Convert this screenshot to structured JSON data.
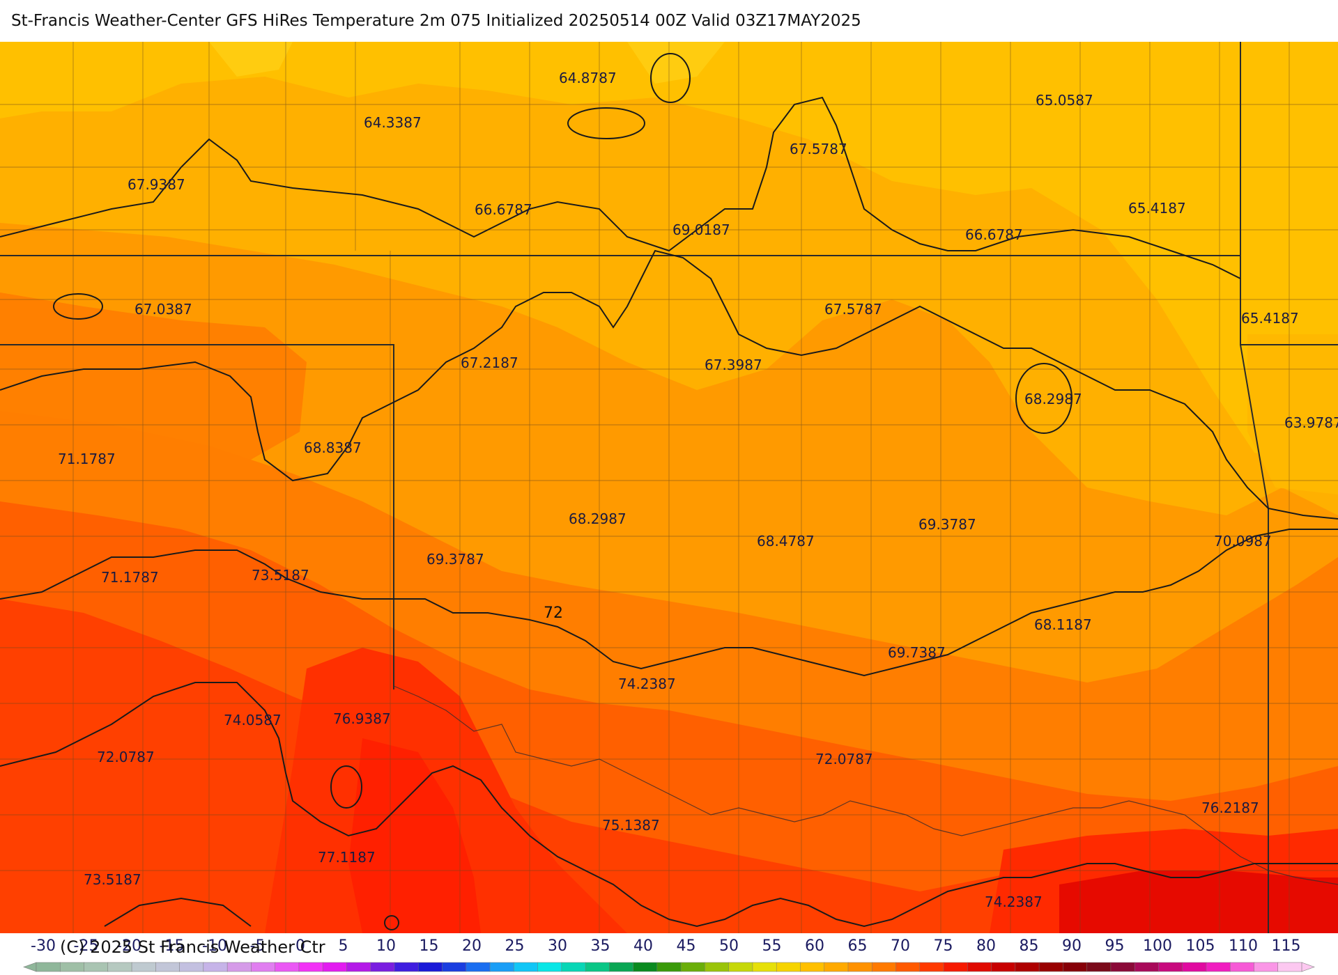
{
  "title": "St-Francis Weather-Center GFS HiRes Temperature 2m  075 Initialized 20250514 00Z Valid 03Z17MAY2025",
  "copyright": "(C) 2025 St Francis Weather Ctr",
  "contour_label": "72",
  "temperature_labels": [
    {
      "text": "64.8787"
    },
    {
      "text": "64.3387"
    },
    {
      "text": "65.0587"
    },
    {
      "text": "67.9387"
    },
    {
      "text": "67.5787"
    },
    {
      "text": "66.6787"
    },
    {
      "text": "69.0187"
    },
    {
      "text": "66.6787"
    },
    {
      "text": "65.4187"
    },
    {
      "text": "67.0387"
    },
    {
      "text": "67.5787"
    },
    {
      "text": "65.4187"
    },
    {
      "text": "67.2187"
    },
    {
      "text": "67.3987"
    },
    {
      "text": "68.2987"
    },
    {
      "text": "63.9787"
    },
    {
      "text": "71.1787"
    },
    {
      "text": "68.8387"
    },
    {
      "text": "68.2987"
    },
    {
      "text": "68.4787"
    },
    {
      "text": "69.3787"
    },
    {
      "text": "70.0987"
    },
    {
      "text": "71.1787"
    },
    {
      "text": "73.5187"
    },
    {
      "text": "69.3787"
    },
    {
      "text": "68.1187"
    },
    {
      "text": "69.7387"
    },
    {
      "text": "74.2387"
    },
    {
      "text": "74.0587"
    },
    {
      "text": "76.9387"
    },
    {
      "text": "72.0787"
    },
    {
      "text": "72.0787"
    },
    {
      "text": "75.1387"
    },
    {
      "text": "76.2187"
    },
    {
      "text": "77.1187"
    },
    {
      "text": "73.5187"
    },
    {
      "text": "74.2387"
    }
  ],
  "legend": {
    "ticks": [
      "-30",
      "-25",
      "-20",
      "-15",
      "-10",
      "-5",
      "0",
      "5",
      "10",
      "15",
      "20",
      "25",
      "30",
      "35",
      "40",
      "45",
      "50",
      "55",
      "60",
      "65",
      "70",
      "75",
      "80",
      "85",
      "90",
      "95",
      "100",
      "105",
      "110",
      "115"
    ],
    "colors": [
      "#8fb79a",
      "#9fbfa6",
      "#a9c4b2",
      "#b6c9c0",
      "#bfcad0",
      "#c2c6d8",
      "#c3c0e0",
      "#c6b4e8",
      "#d59be8",
      "#e07ef0",
      "#ea58f4",
      "#f232f6",
      "#e21cf0",
      "#b41ae8",
      "#7a1ee0",
      "#3f1ee0",
      "#1a1ad8",
      "#1a3ee0",
      "#1a6ef0",
      "#1a9ef6",
      "#12c6f6",
      "#0ae6e6",
      "#08d6b6",
      "#0ac686",
      "#0aa654",
      "#0a8a20",
      "#3a9a0a",
      "#6aae0a",
      "#9ac40a",
      "#c6d80a",
      "#e6e00a",
      "#f6d400",
      "#ffc000",
      "#ffaa00",
      "#ff9200",
      "#ff7a00",
      "#ff5a00",
      "#ff3a00",
      "#f61a00",
      "#e00a00",
      "#c80000",
      "#ae0000",
      "#980000",
      "#860008",
      "#7a0a1a",
      "#8a0a38",
      "#a80a5a",
      "#c80a7e",
      "#e00aa0",
      "#f01ec0",
      "#f65ad6",
      "#fa96e6",
      "#fcc8f0"
    ]
  },
  "colors": {
    "very_warm": "#ff2a00",
    "warm": "#ff4a00",
    "mid_warm": "#ff6a00",
    "mid": "#ff8a00",
    "mild": "#ff9a00",
    "cool": "#ffae00",
    "cooler": "#ffc000",
    "hot": "#e60a00"
  }
}
